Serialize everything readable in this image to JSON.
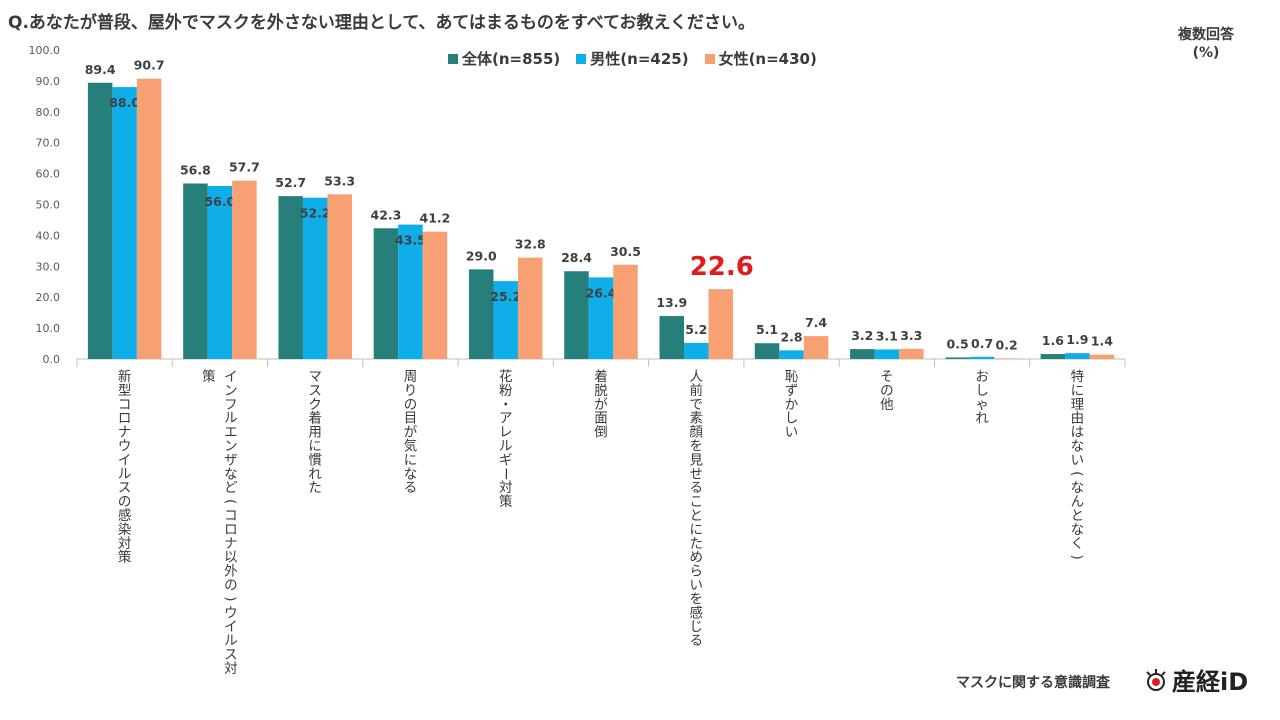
{
  "title": "Q.あなたが普段、屋外でマスクを外さない理由として、あてはまるものをすべてお教えください。",
  "unit_label": "複数回答\n(%)",
  "footer": "マスクに関する意識調査",
  "logo_text": "産経iD",
  "colors": {
    "series1": "#267f7a",
    "series2": "#10aee8",
    "series3": "#f7a074",
    "highlight": "#e01c1c",
    "axis": "#bfbfbf"
  },
  "chart_data": {
    "type": "bar",
    "title": "Q.あなたが普段、屋外でマスクを外さない理由として、あてはまるものをすべてお教えください。",
    "ylabel": "(%)",
    "ylim": [
      0,
      100
    ],
    "yticks": [
      "0.0",
      "10.0",
      "20.0",
      "30.0",
      "40.0",
      "50.0",
      "60.0",
      "70.0",
      "80.0",
      "90.0",
      "100.0"
    ],
    "legend_position": "top-center",
    "categories": [
      "新型コロナウイルスの感染対策",
      "インフルエンザなど(コロナ以外の)ウイルス対策",
      "マスク着用に慣れた",
      "周りの目が気になる",
      "花粉・アレルギー対策",
      "着脱が面倒",
      "人前で素顔を見せることにためらいを感じる",
      "恥ずかしい",
      "その他",
      "おしゃれ",
      "特に理由はない(なんとなく)"
    ],
    "series": [
      {
        "name": "全体(n=855)",
        "values": [
          89.4,
          56.8,
          52.7,
          42.3,
          29.0,
          28.4,
          13.9,
          5.1,
          3.2,
          0.5,
          1.6
        ],
        "labels": [
          "89.4",
          "56.8",
          "52.7",
          "42.3",
          "29.0",
          "28.4",
          "13.9",
          "5.1",
          "3.2",
          "0.5",
          "1.6"
        ]
      },
      {
        "name": "男性(n=425)",
        "values": [
          88.0,
          56.0,
          52.2,
          43.5,
          25.2,
          26.4,
          5.2,
          2.8,
          3.1,
          0.7,
          1.9
        ],
        "labels": [
          "88.0",
          "56.0",
          "52.2",
          "43.5",
          "25.2",
          "26.4",
          "5.2",
          "2.8",
          "3.1",
          "0.7",
          "1.9"
        ]
      },
      {
        "name": "女性(n=430)",
        "values": [
          90.7,
          57.7,
          53.3,
          41.2,
          32.8,
          30.5,
          22.6,
          7.4,
          3.3,
          0.2,
          1.4
        ],
        "labels": [
          "90.7",
          "57.7",
          "53.3",
          "41.2",
          "32.8",
          "30.5",
          "22.6",
          "7.4",
          "3.3",
          "0.2",
          "1.4"
        ]
      }
    ],
    "highlight": {
      "series_index": 2,
      "category_index": 6
    }
  }
}
